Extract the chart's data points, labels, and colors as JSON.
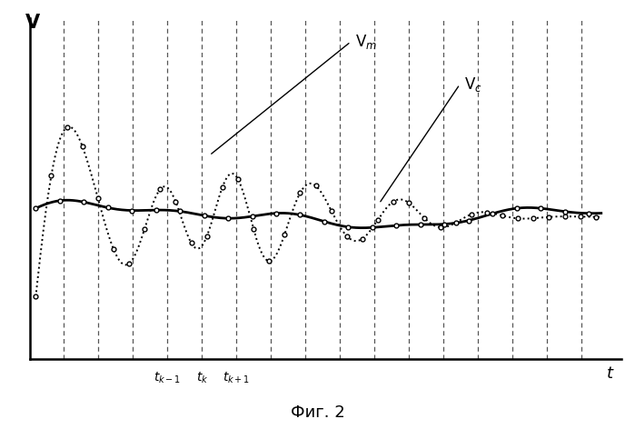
{
  "title": "Фиг. 2",
  "xlabel": "t",
  "ylabel": "V",
  "fig_width": 6.99,
  "fig_height": 4.72,
  "dpi": 100,
  "background_color": "#ffffff",
  "num_vlines": 16,
  "vline_color": "#444444"
}
